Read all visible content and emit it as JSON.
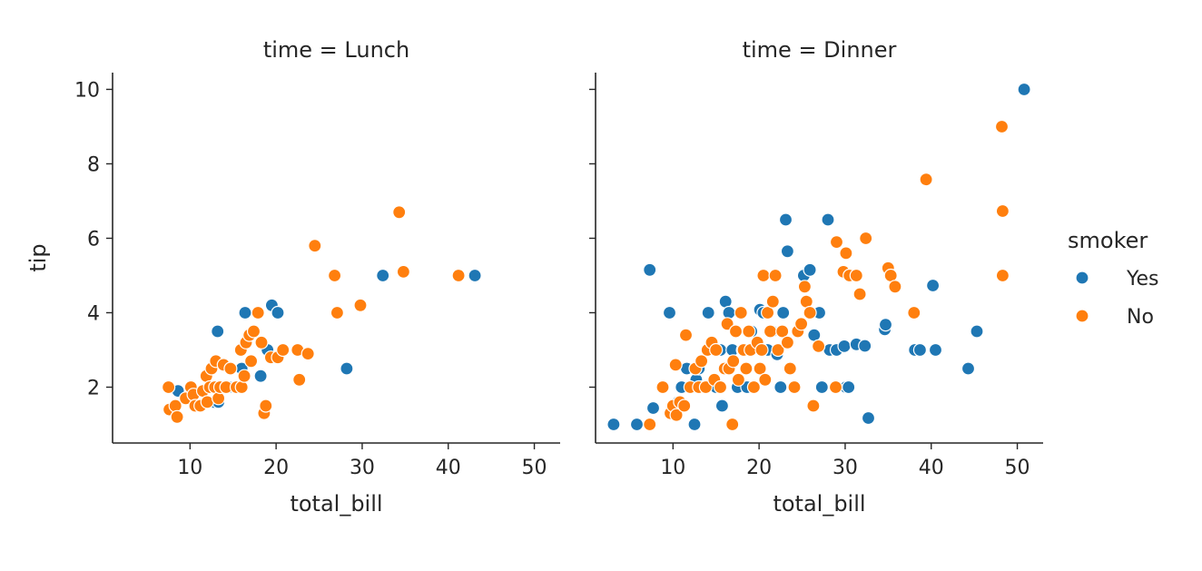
{
  "chart_data": {
    "type": "scatter",
    "x_label": "total_bill",
    "y_label": "tip",
    "xlim": [
      1,
      53
    ],
    "ylim": [
      0.5,
      10.45
    ],
    "x_ticks": [
      10,
      20,
      30,
      40,
      50
    ],
    "y_ticks": [
      2,
      4,
      6,
      8,
      10
    ],
    "grid": false,
    "legend": {
      "title": "smoker",
      "placement": "right",
      "entries": [
        {
          "label": "Yes",
          "color": "#1f77b4"
        },
        {
          "label": "No",
          "color": "#ff7f0e"
        }
      ]
    },
    "panels": [
      {
        "title": "time = Lunch",
        "series": [
          {
            "name": "Yes",
            "color": "#1f77b4",
            "points": [
              [
                8.6,
                1.9
              ],
              [
                10.1,
                1.8
              ],
              [
                12.2,
                1.6
              ],
              [
                12.8,
                1.6
              ],
              [
                13.2,
                3.5
              ],
              [
                13.3,
                1.6
              ],
              [
                14.5,
                2.0
              ],
              [
                15.4,
                2.0
              ],
              [
                16.0,
                2.5
              ],
              [
                16.4,
                4.0
              ],
              [
                18.2,
                2.3
              ],
              [
                19.0,
                3.0
              ],
              [
                19.5,
                4.2
              ],
              [
                20.2,
                4.0
              ],
              [
                28.2,
                2.5
              ],
              [
                32.4,
                5.0
              ],
              [
                43.1,
                5.0
              ]
            ]
          },
          {
            "name": "No",
            "color": "#ff7f0e",
            "points": [
              [
                7.5,
                2.0
              ],
              [
                7.6,
                1.4
              ],
              [
                8.3,
                1.5
              ],
              [
                8.5,
                1.2
              ],
              [
                9.5,
                1.7
              ],
              [
                10.1,
                2.0
              ],
              [
                10.4,
                1.8
              ],
              [
                10.6,
                1.5
              ],
              [
                11.2,
                1.5
              ],
              [
                11.5,
                1.9
              ],
              [
                11.9,
                2.3
              ],
              [
                12.0,
                1.6
              ],
              [
                12.3,
                2.0
              ],
              [
                12.5,
                2.5
              ],
              [
                12.9,
                2.0
              ],
              [
                13.0,
                2.7
              ],
              [
                13.3,
                1.7
              ],
              [
                13.5,
                2.0
              ],
              [
                13.9,
                2.6
              ],
              [
                14.2,
                2.0
              ],
              [
                14.7,
                2.5
              ],
              [
                15.4,
                2.0
              ],
              [
                15.9,
                3.0
              ],
              [
                16.0,
                2.0
              ],
              [
                16.3,
                2.3
              ],
              [
                16.5,
                3.2
              ],
              [
                16.9,
                3.4
              ],
              [
                17.1,
                2.7
              ],
              [
                17.4,
                3.5
              ],
              [
                17.9,
                4.0
              ],
              [
                18.3,
                3.2
              ],
              [
                18.6,
                1.3
              ],
              [
                18.8,
                1.5
              ],
              [
                19.4,
                2.8
              ],
              [
                20.2,
                2.8
              ],
              [
                20.8,
                3.0
              ],
              [
                22.5,
                3.0
              ],
              [
                22.7,
                2.2
              ],
              [
                23.7,
                2.9
              ],
              [
                24.5,
                5.8
              ],
              [
                26.8,
                5.0
              ],
              [
                27.1,
                4.0
              ],
              [
                29.8,
                4.2
              ],
              [
                34.3,
                6.7
              ],
              [
                34.8,
                5.1
              ],
              [
                41.2,
                5.0
              ]
            ]
          }
        ]
      },
      {
        "title": "time = Dinner",
        "series": [
          {
            "name": "Yes",
            "color": "#1f77b4",
            "points": [
              [
                3.1,
                1.0
              ],
              [
                5.8,
                1.0
              ],
              [
                7.3,
                5.15
              ],
              [
                7.7,
                1.44
              ],
              [
                9.6,
                4.0
              ],
              [
                10.3,
                1.3
              ],
              [
                10.6,
                1.6
              ],
              [
                11.0,
                2.0
              ],
              [
                11.6,
                2.5
              ],
              [
                12.3,
                2.0
              ],
              [
                12.5,
                1.0
              ],
              [
                12.7,
                2.2
              ],
              [
                13.0,
                2.5
              ],
              [
                13.4,
                2.0
              ],
              [
                14.1,
                4.0
              ],
              [
                15.0,
                2.0
              ],
              [
                15.5,
                3.0
              ],
              [
                15.7,
                1.5
              ],
              [
                16.1,
                4.3
              ],
              [
                16.5,
                4.0
              ],
              [
                16.9,
                3.0
              ],
              [
                17.5,
                2.0
              ],
              [
                18.1,
                3.0
              ],
              [
                18.6,
                2.0
              ],
              [
                19.1,
                3.5
              ],
              [
                20.1,
                4.08
              ],
              [
                20.5,
                4.0
              ],
              [
                21.0,
                3.0
              ],
              [
                21.5,
                3.5
              ],
              [
                22.1,
                2.88
              ],
              [
                22.5,
                2.0
              ],
              [
                22.8,
                4.0
              ],
              [
                23.1,
                6.5
              ],
              [
                23.3,
                5.65
              ],
              [
                24.0,
                2.0
              ],
              [
                24.6,
                3.5
              ],
              [
                25.2,
                5.0
              ],
              [
                25.9,
                5.15
              ],
              [
                26.4,
                3.4
              ],
              [
                27.0,
                4.0
              ],
              [
                27.3,
                2.0
              ],
              [
                28.0,
                6.5
              ],
              [
                28.2,
                3.0
              ],
              [
                29.0,
                3.0
              ],
              [
                29.9,
                3.1
              ],
              [
                30.1,
                2.0
              ],
              [
                30.4,
                2.0
              ],
              [
                31.3,
                3.15
              ],
              [
                32.3,
                3.11
              ],
              [
                32.7,
                1.17
              ],
              [
                34.6,
                3.55
              ],
              [
                34.7,
                3.68
              ],
              [
                38.1,
                3.0
              ],
              [
                38.7,
                3.0
              ],
              [
                40.2,
                4.73
              ],
              [
                40.5,
                3.0
              ],
              [
                44.3,
                2.5
              ],
              [
                45.3,
                3.5
              ],
              [
                50.8,
                10.0
              ]
            ]
          },
          {
            "name": "No",
            "color": "#ff7f0e",
            "points": [
              [
                7.3,
                1.0
              ],
              [
                8.8,
                2.0
              ],
              [
                9.7,
                1.3
              ],
              [
                10.0,
                1.5
              ],
              [
                10.3,
                2.6
              ],
              [
                10.4,
                1.25
              ],
              [
                10.8,
                1.6
              ],
              [
                11.3,
                1.5
              ],
              [
                11.5,
                3.4
              ],
              [
                12.0,
                2.0
              ],
              [
                12.6,
                2.5
              ],
              [
                13.0,
                2.0
              ],
              [
                13.3,
                2.7
              ],
              [
                13.8,
                2.0
              ],
              [
                14.0,
                3.0
              ],
              [
                14.5,
                3.2
              ],
              [
                14.8,
                2.2
              ],
              [
                15.0,
                3.0
              ],
              [
                15.5,
                2.0
              ],
              [
                16.0,
                2.5
              ],
              [
                16.3,
                3.7
              ],
              [
                16.5,
                2.5
              ],
              [
                16.9,
                1.0
              ],
              [
                17.0,
                2.7
              ],
              [
                17.3,
                3.5
              ],
              [
                17.6,
                2.2
              ],
              [
                17.9,
                4.0
              ],
              [
                18.2,
                3.0
              ],
              [
                18.5,
                2.5
              ],
              [
                18.8,
                3.5
              ],
              [
                19.0,
                3.0
              ],
              [
                19.4,
                2.0
              ],
              [
                19.8,
                3.2
              ],
              [
                20.1,
                2.5
              ],
              [
                20.3,
                3.0
              ],
              [
                20.5,
                5.0
              ],
              [
                20.7,
                2.2
              ],
              [
                21.0,
                4.0
              ],
              [
                21.3,
                3.5
              ],
              [
                21.6,
                4.3
              ],
              [
                21.9,
                5.0
              ],
              [
                22.2,
                3.0
              ],
              [
                22.7,
                3.5
              ],
              [
                23.3,
                3.2
              ],
              [
                23.6,
                2.5
              ],
              [
                24.1,
                2.0
              ],
              [
                24.5,
                3.5
              ],
              [
                24.9,
                3.7
              ],
              [
                25.3,
                4.7
              ],
              [
                25.5,
                4.3
              ],
              [
                25.9,
                4.0
              ],
              [
                26.3,
                1.5
              ],
              [
                26.9,
                3.1
              ],
              [
                28.9,
                2.0
              ],
              [
                29.0,
                5.9
              ],
              [
                29.8,
                5.1
              ],
              [
                30.1,
                5.6
              ],
              [
                30.5,
                5.0
              ],
              [
                31.3,
                5.0
              ],
              [
                31.7,
                4.5
              ],
              [
                32.4,
                6.0
              ],
              [
                35.0,
                5.2
              ],
              [
                35.3,
                5.0
              ],
              [
                35.8,
                4.7
              ],
              [
                38.0,
                4.0
              ],
              [
                39.4,
                7.58
              ],
              [
                48.2,
                9.0
              ],
              [
                48.3,
                6.73
              ],
              [
                48.3,
                5.0
              ]
            ]
          }
        ]
      }
    ]
  }
}
